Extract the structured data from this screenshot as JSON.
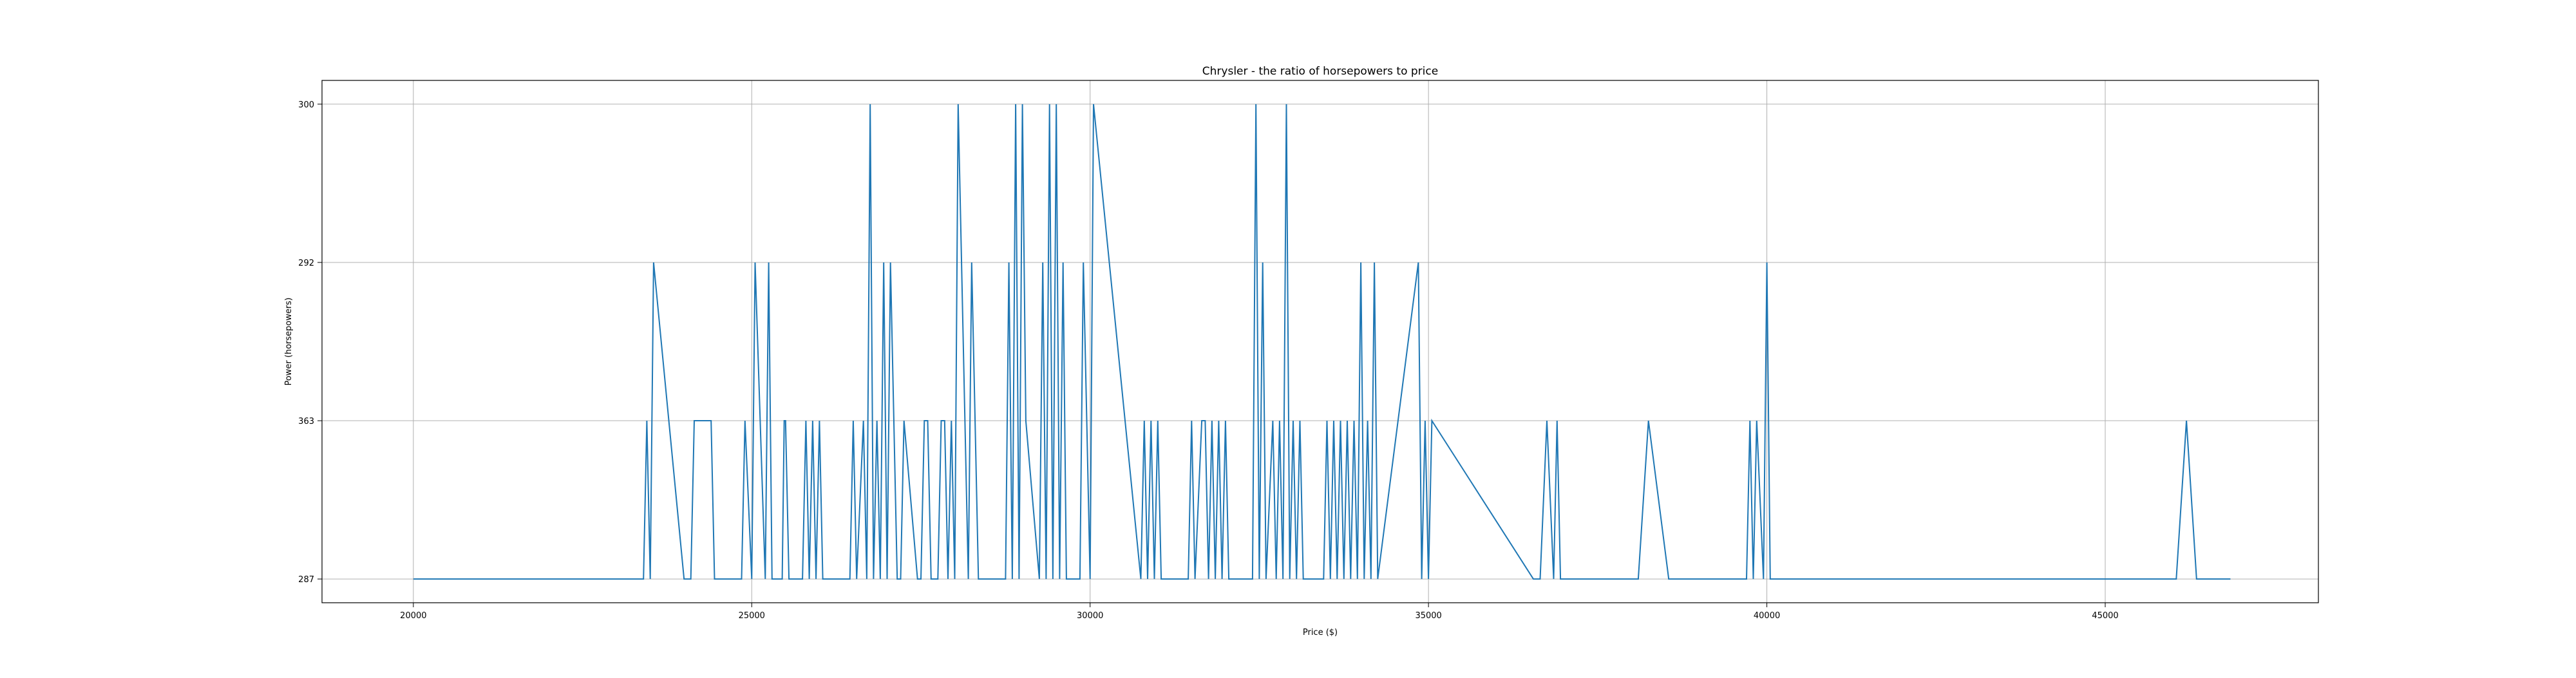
{
  "chart_data": {
    "type": "line",
    "title": "Chrysler - the ratio of horsepowers to price",
    "xlabel": "Price ($)",
    "ylabel": "Power (horsepowers)",
    "xlim": [
      18650,
      48150
    ],
    "x_ticks": [
      20000,
      25000,
      30000,
      35000,
      40000,
      45000
    ],
    "x_tick_labels": [
      "20000",
      "25000",
      "30000",
      "35000",
      "40000",
      "45000"
    ],
    "y_ticks": [
      0,
      1,
      2,
      3
    ],
    "y_tick_labels": [
      "287",
      "363",
      "292",
      "300"
    ],
    "y_axis_note": "categorical horsepower levels in the printed tick order",
    "ylim": [
      -0.15,
      3.15
    ],
    "grid": true,
    "line_color": "#1f77b4",
    "series": [
      {
        "x": [
          20000,
          23400,
          23450,
          23500,
          23550,
          24000,
          24100,
          24150,
          24400,
          24450,
          24800,
          24850,
          24900,
          25000,
          25050,
          25200,
          25250,
          25300,
          25450,
          25480,
          25500,
          25550,
          25650,
          25750,
          25800,
          25850,
          25900,
          25950,
          26000,
          26050,
          26450,
          26500,
          26550,
          26650,
          26700,
          26750,
          26800,
          26850,
          26900,
          26950,
          27000,
          27050,
          27150,
          27200,
          27250,
          27450,
          27500,
          27550,
          27600,
          27650,
          27750,
          27800,
          27850,
          27900,
          27950,
          28000,
          28050,
          28200,
          28250,
          28300,
          28350,
          28750,
          28800,
          28850,
          28900,
          28950,
          29000,
          29050,
          29250,
          29300,
          29350,
          29400,
          29450,
          29500,
          29550,
          29600,
          29650,
          29850,
          29900,
          29950,
          30000,
          30050,
          30750,
          30800,
          30850,
          30900,
          30950,
          31000,
          31050,
          31450,
          31500,
          31550,
          31650,
          31700,
          31750,
          31800,
          31850,
          31900,
          31950,
          32000,
          32050,
          32400,
          32450,
          32500,
          32550,
          32600,
          32700,
          32750,
          32800,
          32850,
          32900,
          32950,
          33000,
          33050,
          33100,
          33150,
          33450,
          33500,
          33550,
          33600,
          33650,
          33700,
          33750,
          33800,
          33850,
          33900,
          33950,
          34000,
          34050,
          34100,
          34150,
          34200,
          34250,
          34850,
          34900,
          34950,
          35000,
          35050,
          36550,
          36650,
          36750,
          36850,
          36900,
          36950,
          38100,
          38250,
          38550,
          39700,
          39750,
          39800,
          39850,
          39950,
          40000,
          40050,
          46050,
          46200,
          46350,
          46850
        ],
        "y": [
          0,
          0,
          1,
          0,
          2,
          0,
          0,
          1,
          1,
          0,
          0,
          0,
          1,
          0,
          2,
          0,
          2,
          0,
          0,
          1,
          1,
          0,
          0,
          0,
          1,
          0,
          1,
          0,
          1,
          0,
          0,
          1,
          0,
          1,
          0,
          3,
          0,
          1,
          0,
          2,
          0,
          2,
          0,
          0,
          1,
          0,
          0,
          1,
          1,
          0,
          0,
          1,
          1,
          0,
          1,
          0,
          3,
          0,
          2,
          1,
          0,
          0,
          2,
          0,
          3,
          0,
          3,
          1,
          0,
          2,
          0,
          3,
          0,
          3,
          0,
          2,
          0,
          0,
          2,
          1,
          0,
          3,
          0,
          1,
          0,
          1,
          0,
          1,
          0,
          0,
          1,
          0,
          1,
          1,
          0,
          1,
          0,
          1,
          0,
          1,
          0,
          0,
          3,
          0,
          2,
          0,
          1,
          0,
          1,
          0,
          3,
          0,
          1,
          0,
          1,
          0,
          0,
          1,
          0,
          1,
          0,
          1,
          0,
          1,
          0,
          1,
          0,
          2,
          0,
          1,
          0,
          2,
          0,
          2,
          0,
          1,
          0,
          1,
          0,
          0,
          1,
          0,
          1,
          0,
          0,
          1,
          0,
          0,
          1,
          0,
          1,
          0,
          2,
          0,
          0,
          1,
          0,
          0
        ]
      }
    ]
  }
}
